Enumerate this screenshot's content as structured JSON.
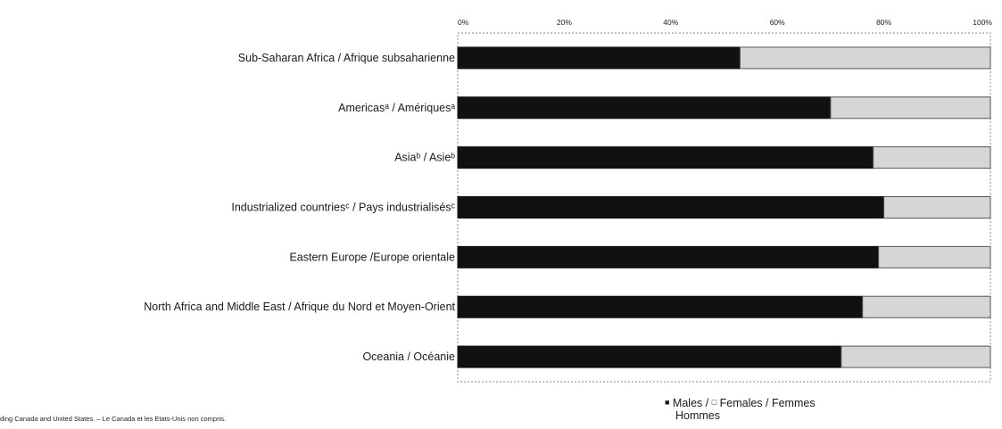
{
  "chart_data": {
    "type": "bar",
    "orientation": "horizontal",
    "stacked": true,
    "percent_scale": true,
    "title": "",
    "xlim": [
      0,
      100
    ],
    "xticks": [
      "0%",
      "20%",
      "40%",
      "60%",
      "80%",
      "100%"
    ],
    "categories": [
      "Sub-Saharan Africa / Afrique subsaharienne",
      "Americasᵃ / Amériquesᵃ",
      "Asiaᵇ / Asieᵇ",
      "Industrialized countriesᶜ / Pays industrialisésᶜ",
      "Eastern Europe /Europe orientale",
      "North Africa and Middle East / Afrique du Nord et Moyen-Orient",
      "Oceania / Océanie"
    ],
    "series": [
      {
        "name": "Males / Hommes",
        "color": "#111111",
        "values": [
          53,
          70,
          78,
          80,
          79,
          76,
          72
        ]
      },
      {
        "name": "Females / Femmes",
        "color": "#d6d6d6",
        "values": [
          47,
          30,
          22,
          20,
          21,
          24,
          28
        ]
      }
    ]
  },
  "legend": {
    "males_line1": "Males /",
    "females_line1": "Females / Femmes",
    "males_line2": "Hommes"
  },
  "footnote": "ding Canada and United States. – Le Canada et les Etats-Unis non compris."
}
